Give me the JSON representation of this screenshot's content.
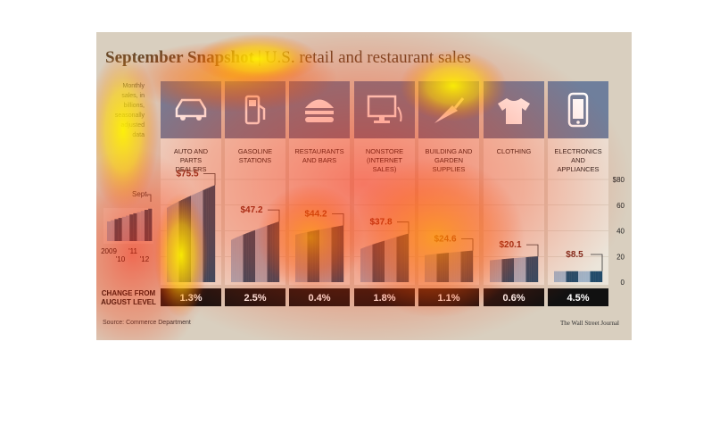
{
  "title": "September Snapshot",
  "subtitle": "U.S. retail and restaurant sales",
  "source": "Source: Commerce Department",
  "credit": "The Wall Street Journal",
  "change_label_line1": "CHANGE FROM",
  "change_label_line2": "AUGUST LEVEL",
  "legend": {
    "note_lines": [
      "Monthly",
      "sales, in",
      "billions,",
      "seasonally",
      "adjusted",
      "data"
    ],
    "month_label": "Sept.",
    "year_labels": [
      "2009",
      "'10",
      "'11",
      "'12"
    ]
  },
  "colors": {
    "background": "#d9cfbf",
    "panel": "#ebe5da",
    "icon_header": "#6f7f9c",
    "bar_dark": "#214b6a",
    "bar_light": "#9fb2c6",
    "change_box": "#111111",
    "accent_text": "#7a2a1e"
  },
  "chart_data": {
    "type": "bar",
    "title": "September Snapshot | U.S. retail and restaurant sales",
    "ylabel": "",
    "ylim": [
      0,
      80
    ],
    "y_ticks": [
      "$80",
      "60",
      "40",
      "20",
      "0"
    ],
    "categories": [
      {
        "name": "auto",
        "label_lines": [
          "AUTO AND",
          "PARTS",
          "DEALERS"
        ],
        "icon": "car-icon",
        "value": 75.5,
        "value_label": "$75.5",
        "change": "1.3%",
        "start_value": 58
      },
      {
        "name": "gasoline",
        "label_lines": [
          "GASOLINE",
          "STATIONS"
        ],
        "icon": "gas-pump-icon",
        "value": 47.2,
        "value_label": "$47.2",
        "change": "2.5%",
        "start_value": 33
      },
      {
        "name": "restaurants",
        "label_lines": [
          "RESTAURANTS",
          "AND BARS"
        ],
        "icon": "burger-icon",
        "value": 44.2,
        "value_label": "$44.2",
        "change": "0.4%",
        "start_value": 37
      },
      {
        "name": "nonstore",
        "label_lines": [
          "NONSTORE",
          "(INTERNET",
          "SALES)"
        ],
        "icon": "computer-icon",
        "value": 37.8,
        "value_label": "$37.8",
        "change": "1.8%",
        "start_value": 26
      },
      {
        "name": "building",
        "label_lines": [
          "BUILDING AND",
          "GARDEN",
          "SUPPLIES"
        ],
        "icon": "trowel-icon",
        "value": 24.6,
        "value_label": "$24.6",
        "change": "1.1%",
        "start_value": 21
      },
      {
        "name": "clothing",
        "label_lines": [
          "CLOTHING"
        ],
        "icon": "shirt-icon",
        "value": 20.1,
        "value_label": "$20.1",
        "change": "0.6%",
        "start_value": 17
      },
      {
        "name": "electronics",
        "label_lines": [
          "ELECTRONICS",
          "AND",
          "APPLIANCES"
        ],
        "icon": "phone-icon",
        "value": 8.5,
        "value_label": "$8.5",
        "change": "4.5%",
        "start_value": 8.5
      }
    ]
  }
}
